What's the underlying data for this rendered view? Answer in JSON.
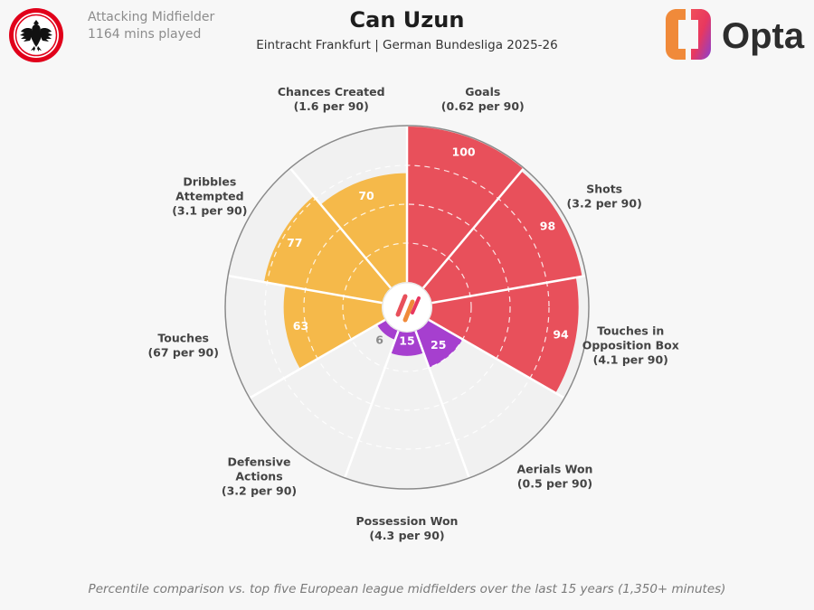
{
  "header": {
    "position": "Attacking Midfielder",
    "minutes": "1164 mins played",
    "player_name": "Can Uzun",
    "subtitle": "Eintracht Frankfurt | German Bundesliga 2025-26",
    "brand": "Opta"
  },
  "footnote": "Percentile comparison vs. top five European league midfielders over the last 15 years (1,350+ minutes)",
  "colors": {
    "attacking": "#e8505b",
    "possession": "#f5b94a",
    "defending": "#a63fcf",
    "background": "#f7f7f7",
    "outer_ring": "#8a8a8a"
  },
  "chart_data": {
    "type": "polar-bar",
    "range": [
      0,
      100
    ],
    "categories": [
      {
        "label": "Goals",
        "sub": "(0.62 per 90)",
        "value": 100,
        "group": "attacking"
      },
      {
        "label": "Shots",
        "sub": "(3.2 per 90)",
        "value": 98,
        "group": "attacking"
      },
      {
        "label": "Touches in Opposition Box",
        "label_lines": [
          "Touches in",
          "Opposition Box"
        ],
        "sub": "(4.1 per 90)",
        "value": 94,
        "group": "attacking"
      },
      {
        "label": "Aerials Won",
        "sub": "(0.5 per 90)",
        "value": 25,
        "group": "defending"
      },
      {
        "label": "Possession Won",
        "sub": "(4.3 per 90)",
        "value": 15,
        "group": "defending"
      },
      {
        "label": "Defensive Actions",
        "label_lines": [
          "Defensive",
          "Actions"
        ],
        "sub": "(3.2 per 90)",
        "value": 6,
        "group": "defending"
      },
      {
        "label": "Touches",
        "sub": "(67 per 90)",
        "value": 63,
        "group": "possession"
      },
      {
        "label": "Dribbles Attempted",
        "label_lines": [
          "Dribbles",
          "Attempted"
        ],
        "sub": "(3.1 per 90)",
        "value": 77,
        "group": "possession"
      },
      {
        "label": "Chances Created",
        "sub": "(1.6 per 90)",
        "value": 70,
        "group": "possession"
      }
    ]
  }
}
